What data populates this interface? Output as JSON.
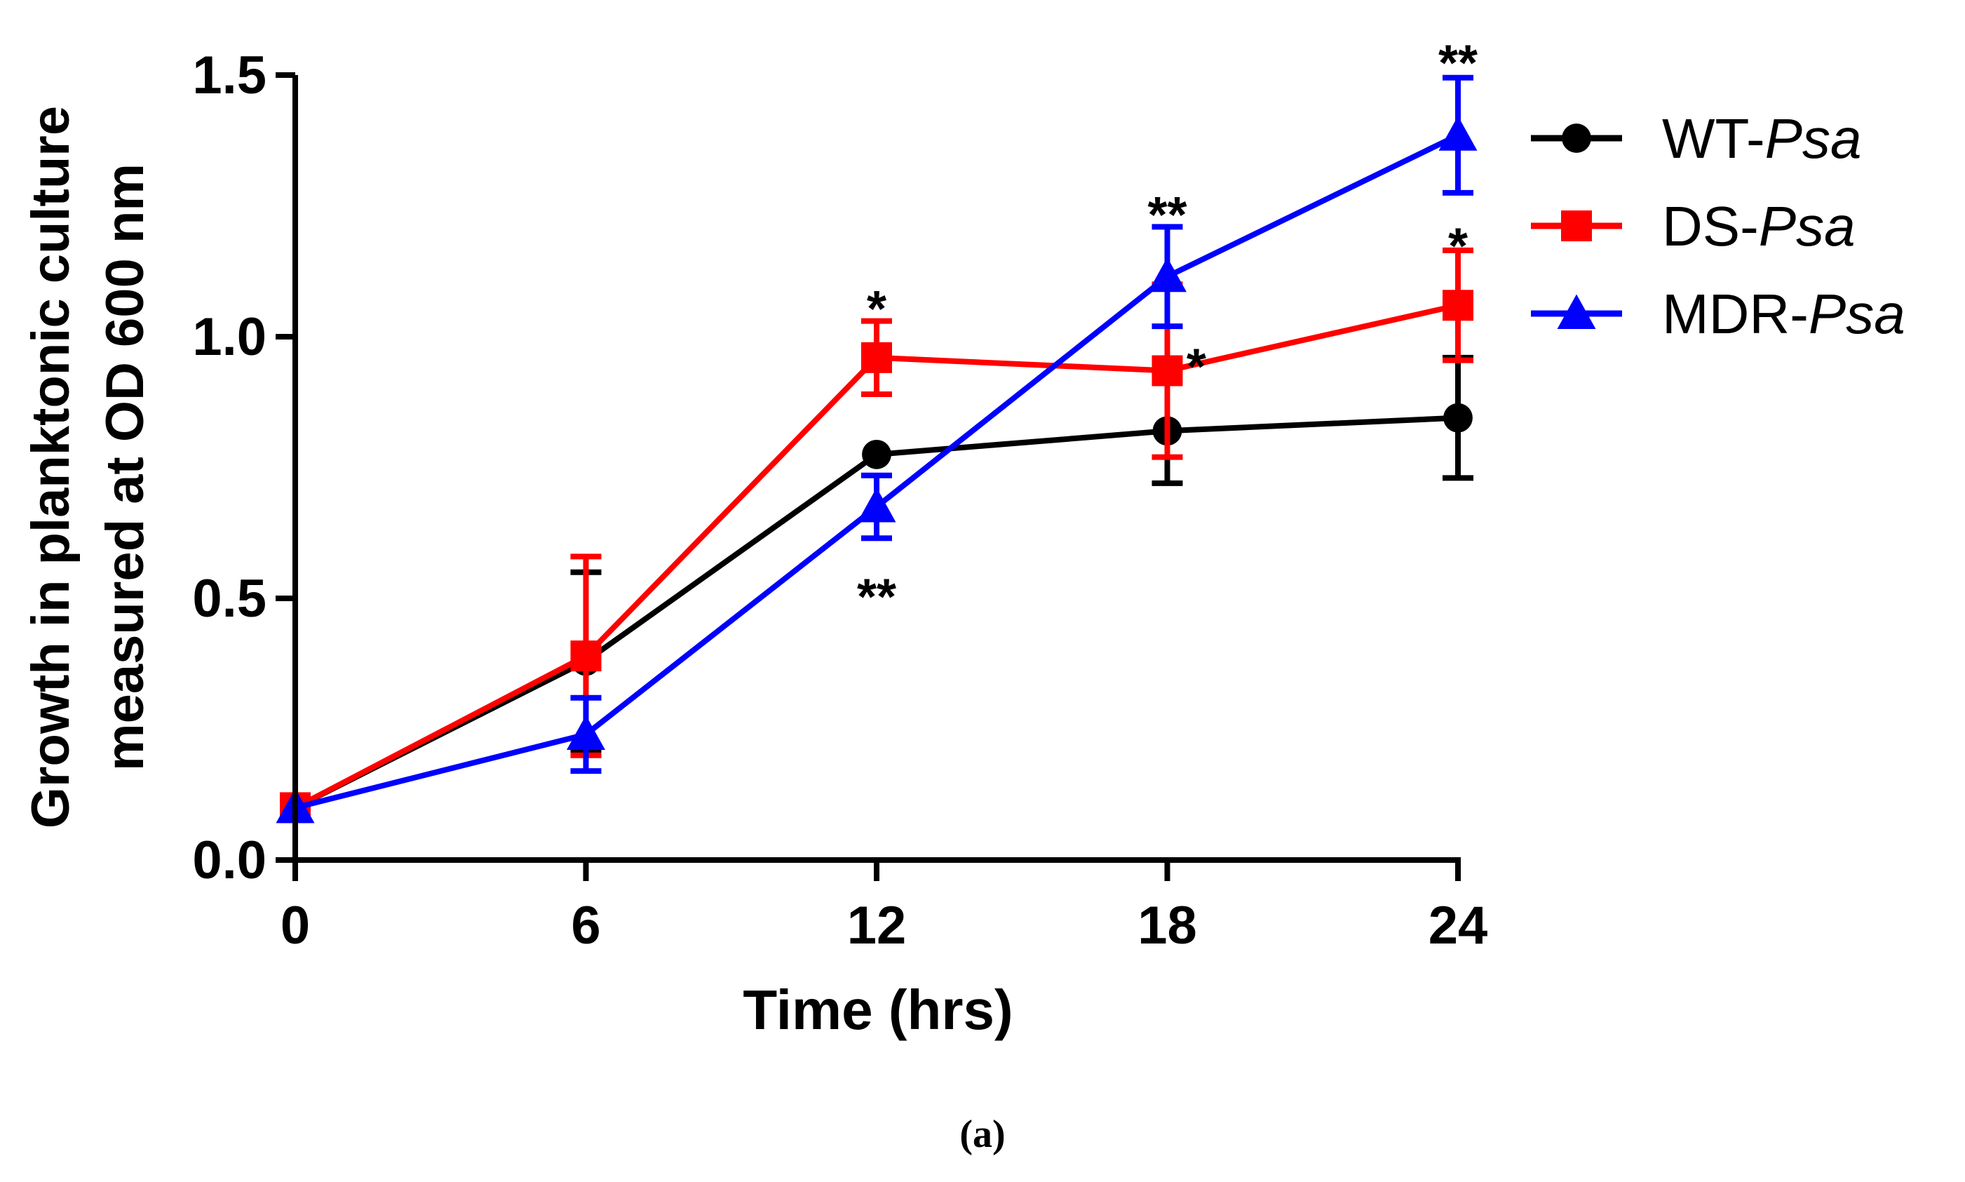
{
  "chart_data": {
    "type": "line",
    "xlabel": "Time (hrs)",
    "ylabel_line1": "Growth in planktonic culture",
    "ylabel_line2": "measured at OD 600 nm",
    "x": [
      0,
      6,
      12,
      18,
      24
    ],
    "x_tick_labels": [
      "0",
      "6",
      "12",
      "18",
      "24"
    ],
    "y_ticks": [
      0.0,
      0.5,
      1.0,
      1.5
    ],
    "y_tick_labels": [
      "0.0",
      "0.5",
      "1.0",
      "1.5"
    ],
    "xlim": [
      0,
      24
    ],
    "ylim": [
      0,
      1.5
    ],
    "grid": false,
    "legend_position": "top-right",
    "caption": "(a)",
    "series": [
      {
        "name": "WT-Psa",
        "name_prefix": "WT-",
        "name_italic": "Psa",
        "color": "#000000",
        "marker": "circle",
        "values": [
          0.1,
          0.38,
          0.775,
          0.82,
          0.845
        ],
        "err_upper": [
          0.0,
          0.17,
          0.0,
          0.1,
          0.115
        ],
        "err_lower": [
          0.0,
          0.17,
          0.0,
          0.1,
          0.115
        ]
      },
      {
        "name": "DS-Psa",
        "name_prefix": "DS-",
        "name_italic": "Psa",
        "color": "#ff0000",
        "marker": "square",
        "values": [
          0.1,
          0.39,
          0.96,
          0.935,
          1.06
        ],
        "err_upper": [
          0.0,
          0.19,
          0.07,
          0.165,
          0.105
        ],
        "err_lower": [
          0.0,
          0.19,
          0.07,
          0.165,
          0.105
        ]
      },
      {
        "name": "MDR-Psa",
        "name_prefix": "MDR-",
        "name_italic": "Psa",
        "color": "#0000ff",
        "marker": "triangle",
        "values": [
          0.1,
          0.24,
          0.675,
          1.115,
          1.385
        ],
        "err_upper": [
          0.0,
          0.07,
          0.06,
          0.095,
          0.11
        ],
        "err_lower": [
          0.0,
          0.07,
          0.06,
          0.095,
          0.11
        ]
      }
    ],
    "annotations": [
      {
        "text": "*",
        "x": 12,
        "y": 1.06
      },
      {
        "text": "**",
        "x": 12,
        "y": 0.51
      },
      {
        "text": "**",
        "x": 18,
        "y": 1.24
      },
      {
        "text": "*",
        "x": 18.6,
        "y": 0.95
      },
      {
        "text": "**",
        "x": 24,
        "y": 1.53
      },
      {
        "text": "*",
        "x": 24,
        "y": 1.18
      }
    ]
  }
}
